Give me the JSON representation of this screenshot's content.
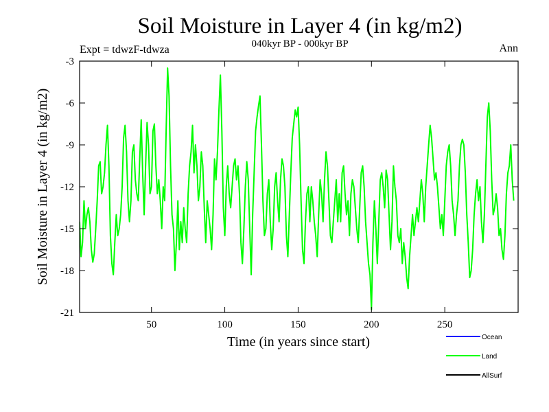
{
  "chart_data": {
    "type": "line",
    "title": "Soil Moisture in Layer 4 (in kg/m2)",
    "subtitle": "040kyr BP - 000kyr BP",
    "left_note": "Expt = tdwzF-tdwza",
    "right_note": "Ann",
    "xlabel": "Time (in years since start)",
    "ylabel": "Soil Moisture in Layer 4 (in kg/m2)",
    "xlim": [
      1,
      300
    ],
    "ylim": [
      -21,
      -3
    ],
    "x_ticks": [
      50,
      100,
      150,
      200,
      250
    ],
    "y_ticks": [
      -3,
      -6,
      -9,
      -12,
      -15,
      -18,
      -21
    ],
    "grid": false,
    "legend_position": "bottom-right",
    "legend": [
      {
        "name": "Ocean",
        "color": "#0000ff"
      },
      {
        "name": "Land",
        "color": "#00ff00"
      },
      {
        "name": "AllSurf",
        "color": "#000000"
      }
    ],
    "series": [
      {
        "name": "Land",
        "color": "#00ff00",
        "points": [
          [
            1,
            -14.5
          ],
          [
            2,
            -17.0
          ],
          [
            3,
            -16.0
          ],
          [
            4,
            -13.0
          ],
          [
            5,
            -15.0
          ],
          [
            6,
            -14.0
          ],
          [
            7,
            -13.5
          ],
          [
            8,
            -14.5
          ],
          [
            9,
            -16.5
          ],
          [
            10,
            -17.4
          ],
          [
            11,
            -16.8
          ],
          [
            12,
            -15.0
          ],
          [
            13,
            -13.0
          ],
          [
            14,
            -10.5
          ],
          [
            15,
            -10.2
          ],
          [
            16,
            -12.5
          ],
          [
            17,
            -12.0
          ],
          [
            18,
            -11.0
          ],
          [
            19,
            -9.0
          ],
          [
            20,
            -7.6
          ],
          [
            21,
            -10.5
          ],
          [
            22,
            -15.5
          ],
          [
            23,
            -17.5
          ],
          [
            24,
            -18.3
          ],
          [
            25,
            -16.0
          ],
          [
            26,
            -14.0
          ],
          [
            27,
            -15.5
          ],
          [
            28,
            -15.0
          ],
          [
            29,
            -14.0
          ],
          [
            30,
            -12.0
          ],
          [
            31,
            -8.5
          ],
          [
            32,
            -7.6
          ],
          [
            33,
            -9.5
          ],
          [
            34,
            -13.0
          ],
          [
            35,
            -14.5
          ],
          [
            36,
            -13.0
          ],
          [
            37,
            -9.5
          ],
          [
            38,
            -9.0
          ],
          [
            39,
            -11.5
          ],
          [
            40,
            -12.5
          ],
          [
            41,
            -13.0
          ],
          [
            42,
            -10.0
          ],
          [
            43,
            -7.2
          ],
          [
            44,
            -11.0
          ],
          [
            45,
            -14.0
          ],
          [
            46,
            -10.5
          ],
          [
            47,
            -7.4
          ],
          [
            48,
            -9.0
          ],
          [
            49,
            -12.5
          ],
          [
            50,
            -12.0
          ],
          [
            51,
            -8.0
          ],
          [
            52,
            -7.5
          ],
          [
            53,
            -10.5
          ],
          [
            54,
            -12.5
          ],
          [
            55,
            -11.5
          ],
          [
            56,
            -13.0
          ],
          [
            57,
            -15.0
          ],
          [
            58,
            -12.0
          ],
          [
            59,
            -13.0
          ],
          [
            60,
            -8.0
          ],
          [
            61,
            -3.5
          ],
          [
            62,
            -5.5
          ],
          [
            63,
            -10.5
          ],
          [
            64,
            -14.0
          ],
          [
            65,
            -15.0
          ],
          [
            66,
            -18.0
          ],
          [
            67,
            -16.0
          ],
          [
            68,
            -13.0
          ],
          [
            69,
            -16.5
          ],
          [
            70,
            -14.5
          ],
          [
            71,
            -16.0
          ],
          [
            72,
            -13.5
          ],
          [
            73,
            -15.0
          ],
          [
            74,
            -16.0
          ],
          [
            75,
            -12.5
          ],
          [
            76,
            -10.5
          ],
          [
            77,
            -9.5
          ],
          [
            78,
            -7.6
          ],
          [
            79,
            -11.0
          ],
          [
            80,
            -9.0
          ],
          [
            81,
            -10.5
          ],
          [
            82,
            -13.0
          ],
          [
            83,
            -12.0
          ],
          [
            84,
            -9.5
          ],
          [
            85,
            -10.5
          ],
          [
            86,
            -13.5
          ],
          [
            87,
            -16.0
          ],
          [
            88,
            -13.0
          ],
          [
            89,
            -14.0
          ],
          [
            90,
            -15.0
          ],
          [
            91,
            -16.5
          ],
          [
            92,
            -14.0
          ],
          [
            93,
            -10.0
          ],
          [
            94,
            -11.5
          ],
          [
            95,
            -9.5
          ],
          [
            96,
            -6.5
          ],
          [
            97,
            -4.0
          ],
          [
            98,
            -8.0
          ],
          [
            99,
            -13.5
          ],
          [
            100,
            -15.5
          ],
          [
            101,
            -12.0
          ],
          [
            102,
            -10.5
          ],
          [
            103,
            -12.5
          ],
          [
            104,
            -13.5
          ],
          [
            105,
            -12.0
          ],
          [
            106,
            -10.5
          ],
          [
            107,
            -10.0
          ],
          [
            108,
            -11.5
          ],
          [
            109,
            -10.5
          ],
          [
            110,
            -12.5
          ],
          [
            111,
            -16.0
          ],
          [
            112,
            -17.5
          ],
          [
            113,
            -15.0
          ],
          [
            114,
            -12.0
          ],
          [
            115,
            -10.2
          ],
          [
            116,
            -11.5
          ],
          [
            117,
            -15.0
          ],
          [
            118,
            -18.3
          ],
          [
            119,
            -14.0
          ],
          [
            120,
            -11.0
          ],
          [
            121,
            -8.0
          ],
          [
            122,
            -7.0
          ],
          [
            123,
            -6.2
          ],
          [
            124,
            -5.5
          ],
          [
            125,
            -9.0
          ],
          [
            126,
            -13.0
          ],
          [
            127,
            -15.5
          ],
          [
            128,
            -15.0
          ],
          [
            129,
            -12.5
          ],
          [
            130,
            -11.5
          ],
          [
            131,
            -14.5
          ],
          [
            132,
            -16.5
          ],
          [
            133,
            -15.0
          ],
          [
            134,
            -12.0
          ],
          [
            135,
            -11.0
          ],
          [
            136,
            -13.0
          ],
          [
            137,
            -14.5
          ],
          [
            138,
            -11.5
          ],
          [
            139,
            -10.0
          ],
          [
            140,
            -10.5
          ],
          [
            141,
            -12.0
          ],
          [
            142,
            -15.5
          ],
          [
            143,
            -17.0
          ],
          [
            144,
            -14.0
          ],
          [
            145,
            -11.0
          ],
          [
            146,
            -8.5
          ],
          [
            147,
            -7.5
          ],
          [
            148,
            -6.5
          ],
          [
            149,
            -7.0
          ],
          [
            150,
            -6.3
          ],
          [
            151,
            -9.0
          ],
          [
            152,
            -13.0
          ],
          [
            153,
            -16.5
          ],
          [
            154,
            -17.5
          ],
          [
            155,
            -14.5
          ],
          [
            156,
            -12.5
          ],
          [
            157,
            -12.0
          ],
          [
            158,
            -14.5
          ],
          [
            159,
            -12.0
          ],
          [
            160,
            -13.0
          ],
          [
            161,
            -14.5
          ],
          [
            162,
            -15.5
          ],
          [
            163,
            -17.0
          ],
          [
            164,
            -14.0
          ],
          [
            165,
            -11.5
          ],
          [
            166,
            -12.5
          ],
          [
            167,
            -14.5
          ],
          [
            168,
            -11.5
          ],
          [
            169,
            -9.5
          ],
          [
            170,
            -10.5
          ],
          [
            171,
            -13.0
          ],
          [
            172,
            -15.5
          ],
          [
            173,
            -16.0
          ],
          [
            174,
            -14.5
          ],
          [
            175,
            -13.0
          ],
          [
            176,
            -11.5
          ],
          [
            177,
            -14.5
          ],
          [
            178,
            -12.5
          ],
          [
            179,
            -14.5
          ],
          [
            180,
            -11.0
          ],
          [
            181,
            -10.5
          ],
          [
            182,
            -12.5
          ],
          [
            183,
            -14.0
          ],
          [
            184,
            -13.0
          ],
          [
            185,
            -15.5
          ],
          [
            186,
            -12.5
          ],
          [
            187,
            -11.5
          ],
          [
            188,
            -12.0
          ],
          [
            189,
            -13.5
          ],
          [
            190,
            -15.0
          ],
          [
            191,
            -16.0
          ],
          [
            192,
            -13.5
          ],
          [
            193,
            -11.0
          ],
          [
            194,
            -10.5
          ],
          [
            195,
            -12.0
          ],
          [
            196,
            -14.5
          ],
          [
            197,
            -16.0
          ],
          [
            198,
            -17.5
          ],
          [
            199,
            -18.3
          ],
          [
            200,
            -20.8
          ],
          [
            201,
            -16.0
          ],
          [
            202,
            -13.0
          ],
          [
            203,
            -15.0
          ],
          [
            204,
            -17.5
          ],
          [
            205,
            -14.5
          ],
          [
            206,
            -11.5
          ],
          [
            207,
            -11.0
          ],
          [
            208,
            -12.0
          ],
          [
            209,
            -13.5
          ],
          [
            210,
            -10.8
          ],
          [
            211,
            -11.5
          ],
          [
            212,
            -14.0
          ],
          [
            213,
            -16.5
          ],
          [
            214,
            -14.5
          ],
          [
            215,
            -10.5
          ],
          [
            216,
            -12.0
          ],
          [
            217,
            -13.0
          ],
          [
            218,
            -15.5
          ],
          [
            219,
            -16.0
          ],
          [
            220,
            -15.0
          ],
          [
            221,
            -17.5
          ],
          [
            222,
            -16.0
          ],
          [
            223,
            -17.0
          ],
          [
            224,
            -18.5
          ],
          [
            225,
            -19.3
          ],
          [
            226,
            -17.0
          ],
          [
            227,
            -15.5
          ],
          [
            228,
            -14.0
          ],
          [
            229,
            -15.5
          ],
          [
            230,
            -14.5
          ],
          [
            231,
            -13.5
          ],
          [
            232,
            -14.5
          ],
          [
            233,
            -13.0
          ],
          [
            234,
            -11.5
          ],
          [
            235,
            -12.5
          ],
          [
            236,
            -14.5
          ],
          [
            237,
            -12.0
          ],
          [
            238,
            -10.5
          ],
          [
            239,
            -9.0
          ],
          [
            240,
            -7.6
          ],
          [
            241,
            -8.5
          ],
          [
            242,
            -10.0
          ],
          [
            243,
            -11.5
          ],
          [
            244,
            -11.0
          ],
          [
            245,
            -12.0
          ],
          [
            246,
            -13.5
          ],
          [
            247,
            -15.0
          ],
          [
            248,
            -14.0
          ],
          [
            249,
            -15.5
          ],
          [
            250,
            -13.0
          ],
          [
            251,
            -10.5
          ],
          [
            252,
            -9.5
          ],
          [
            253,
            -9.0
          ],
          [
            254,
            -10.5
          ],
          [
            255,
            -13.0
          ],
          [
            256,
            -14.0
          ],
          [
            257,
            -15.5
          ],
          [
            258,
            -14.0
          ],
          [
            259,
            -13.0
          ],
          [
            260,
            -10.5
          ],
          [
            261,
            -9.0
          ],
          [
            262,
            -8.6
          ],
          [
            263,
            -9.0
          ],
          [
            264,
            -11.0
          ],
          [
            265,
            -14.0
          ],
          [
            266,
            -16.0
          ],
          [
            267,
            -18.5
          ],
          [
            268,
            -18.0
          ],
          [
            269,
            -16.5
          ],
          [
            270,
            -14.0
          ],
          [
            271,
            -12.5
          ],
          [
            272,
            -11.5
          ],
          [
            273,
            -13.0
          ],
          [
            274,
            -12.0
          ],
          [
            275,
            -14.5
          ],
          [
            276,
            -16.0
          ],
          [
            277,
            -14.0
          ],
          [
            278,
            -10.5
          ],
          [
            279,
            -7.0
          ],
          [
            280,
            -6.0
          ],
          [
            281,
            -8.0
          ],
          [
            282,
            -11.5
          ],
          [
            283,
            -14.0
          ],
          [
            284,
            -13.5
          ],
          [
            285,
            -12.5
          ],
          [
            286,
            -13.5
          ],
          [
            287,
            -15.5
          ],
          [
            288,
            -15.0
          ],
          [
            289,
            -16.5
          ],
          [
            290,
            -17.2
          ],
          [
            291,
            -15.5
          ],
          [
            292,
            -12.5
          ],
          [
            293,
            -11.0
          ],
          [
            294,
            -10.5
          ],
          [
            295,
            -9.0
          ],
          [
            296,
            -11.5
          ],
          [
            297,
            -13.0
          ]
        ]
      }
    ]
  }
}
